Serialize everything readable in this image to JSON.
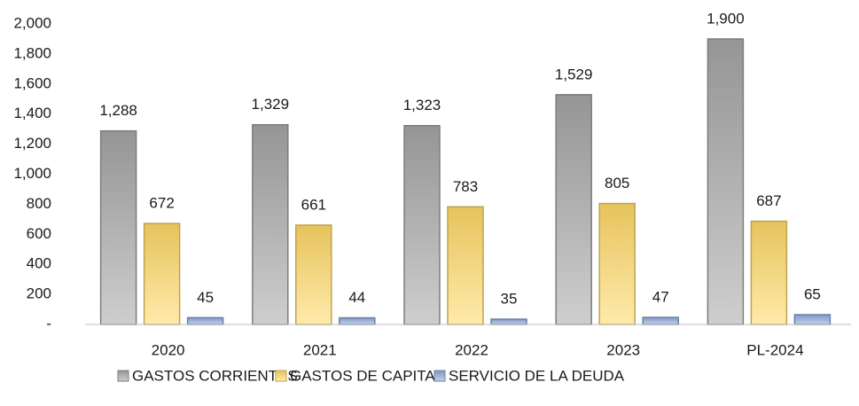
{
  "chart_data": {
    "type": "bar",
    "categories": [
      "2020",
      "2021",
      "2022",
      "2023",
      "PL-2024"
    ],
    "series": [
      {
        "name": "GASTOS CORRIENTES",
        "color": "#a6a6a6",
        "values": [
          1288,
          1329,
          1323,
          1529,
          1900
        ],
        "value_labels": [
          "1,288",
          "1,329",
          "1,323",
          "1,529",
          "1,900"
        ]
      },
      {
        "name": "GASTOS DE CAPITAL",
        "color": "#ffd966",
        "values": [
          672,
          661,
          783,
          805,
          687
        ]
      },
      {
        "name": "SERVICIO DE LA DEUDA",
        "color": "#8faadc",
        "values": [
          45,
          44,
          35,
          47,
          65
        ]
      }
    ],
    "ylim": [
      0,
      2000
    ],
    "yticks": [
      {
        "value": 0,
        "label": "-"
      },
      200,
      400,
      600,
      800,
      {
        "value": 1000,
        "label": "1,000"
      },
      {
        "value": 1200,
        "label": "1,200"
      },
      {
        "value": 1400,
        "label": "1,400"
      },
      {
        "value": 1600,
        "label": "1,600"
      },
      {
        "value": 1800,
        "label": "1,800"
      },
      {
        "value": 2000,
        "label": "2,000"
      }
    ],
    "grid": false,
    "legend": "bottom"
  }
}
